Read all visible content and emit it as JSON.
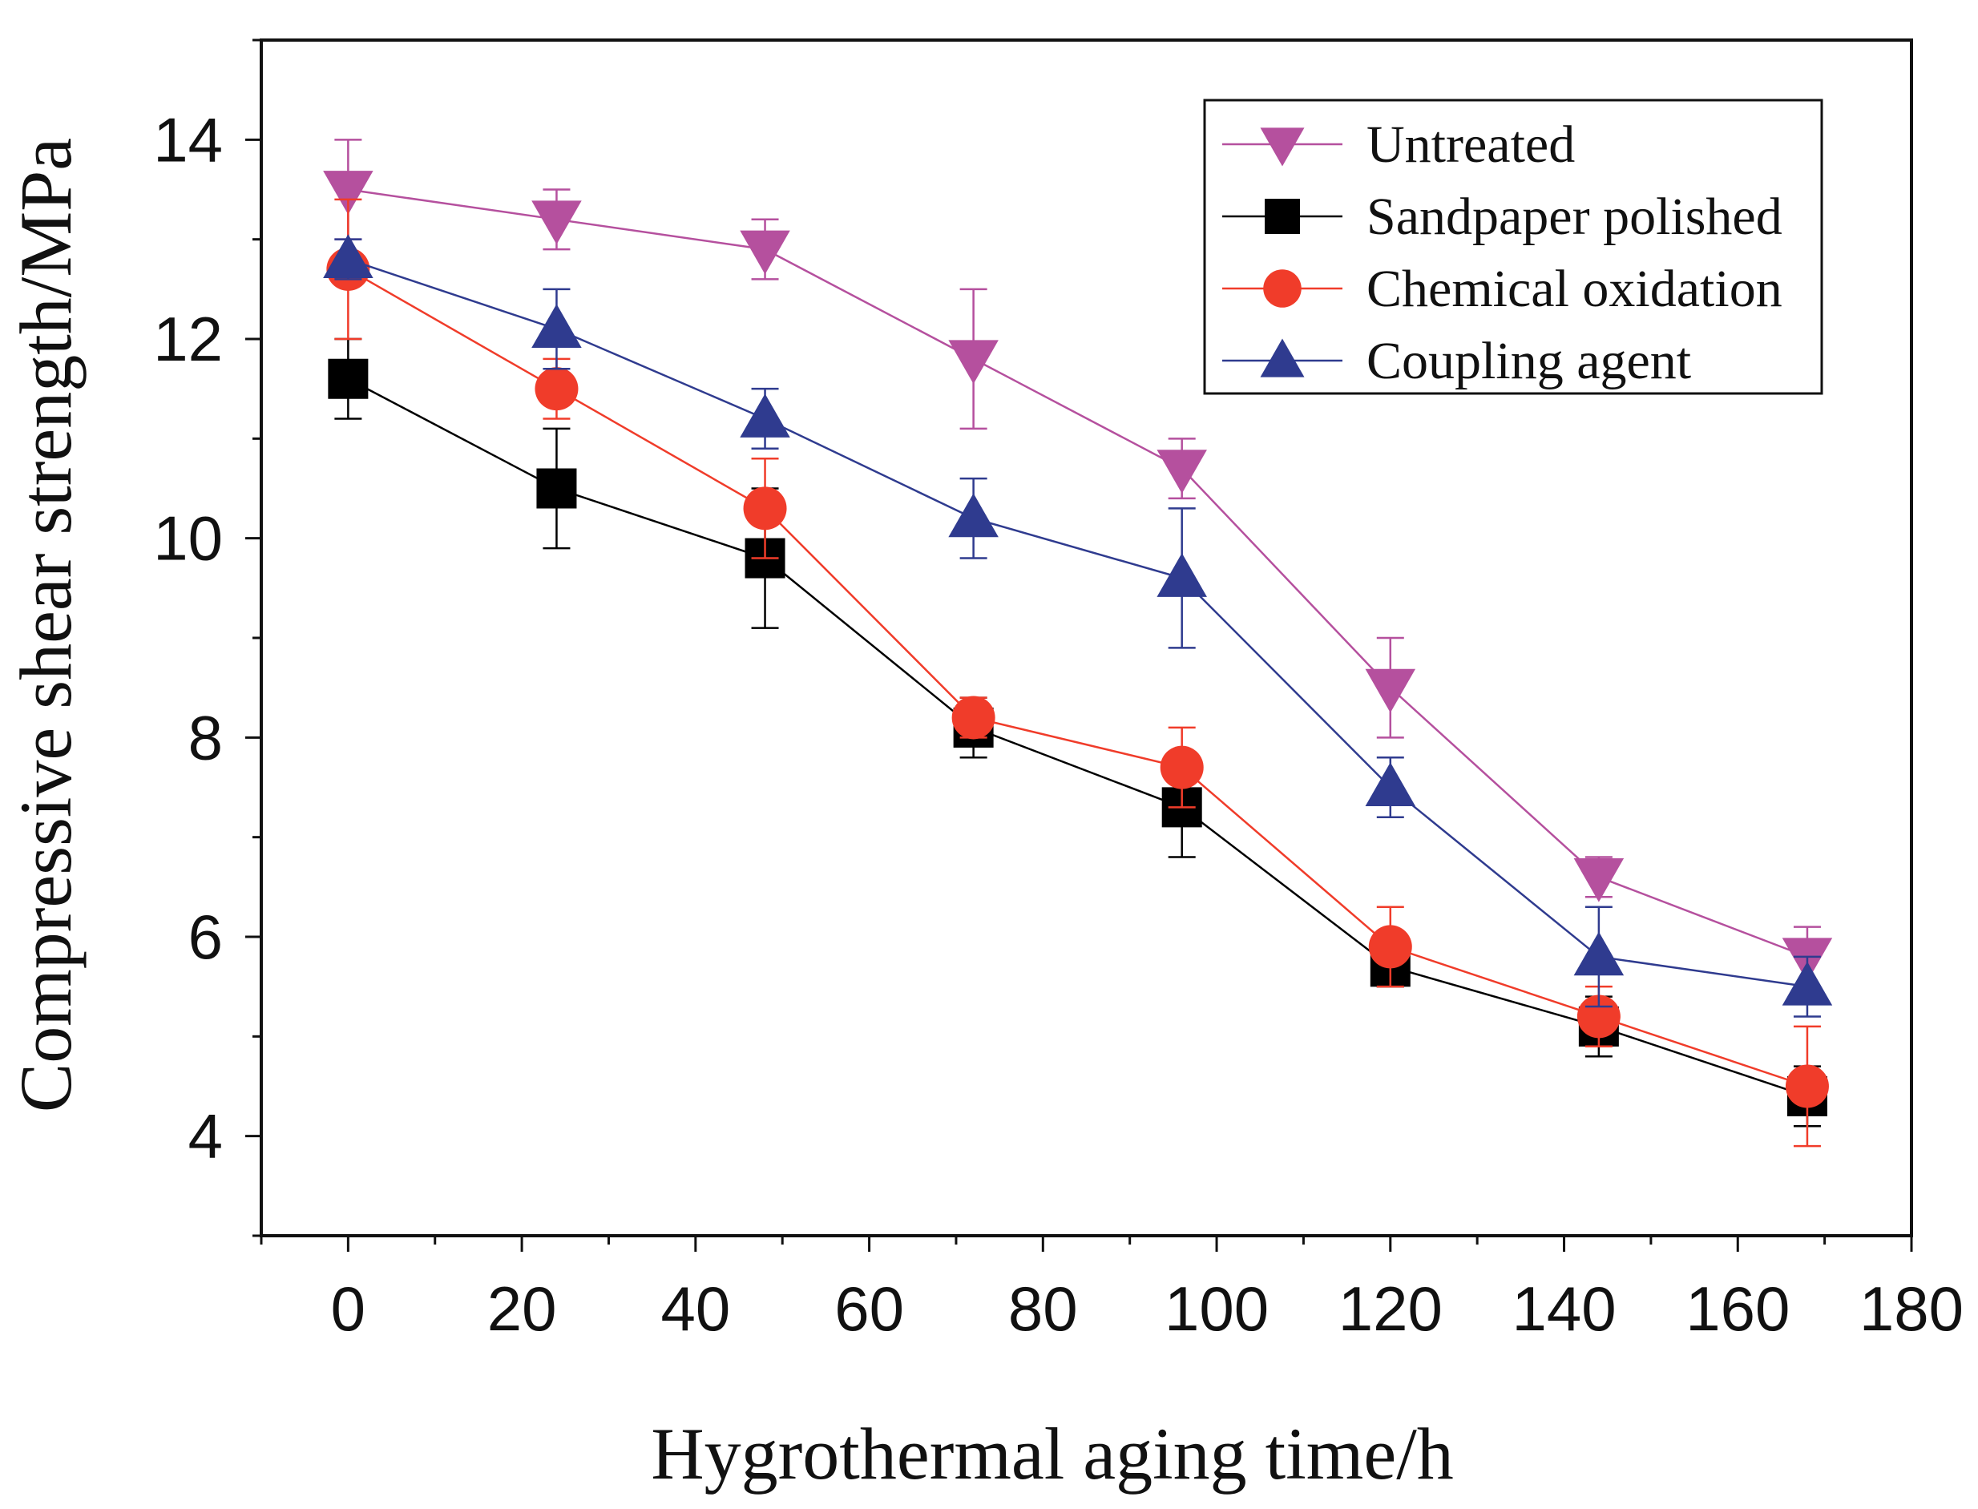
{
  "chart_data": {
    "type": "line",
    "title": "",
    "xlabel": "Hygrothermal aging time/h",
    "ylabel": "Compressive shear strength/MPa",
    "xlim": [
      -10,
      180
    ],
    "ylim": [
      3,
      15
    ],
    "xticks": [
      0,
      20,
      40,
      60,
      80,
      100,
      120,
      140,
      160,
      180
    ],
    "yticks": [
      4,
      6,
      8,
      10,
      12,
      14
    ],
    "x_minor_step": 10,
    "y_minor_step": 1,
    "grid": false,
    "legend_position": "top-right",
    "x": [
      0,
      24,
      48,
      72,
      96,
      120,
      144,
      168
    ],
    "series": [
      {
        "name": "Untreated",
        "marker": "triangle-down",
        "color": "#b5509e",
        "values": [
          13.5,
          13.2,
          12.9,
          11.8,
          10.7,
          8.5,
          6.6,
          5.8
        ],
        "errors": [
          0.5,
          0.3,
          0.3,
          0.7,
          0.3,
          0.5,
          0.2,
          0.3
        ]
      },
      {
        "name": "Sandpaper polished",
        "marker": "square",
        "color": "#000000",
        "values": [
          11.6,
          10.5,
          9.8,
          8.1,
          7.3,
          5.7,
          5.1,
          4.4
        ],
        "errors": [
          0.4,
          0.6,
          0.7,
          0.3,
          0.5,
          0.2,
          0.3,
          0.3
        ]
      },
      {
        "name": "Chemical oxidation",
        "marker": "circle",
        "color": "#f03c2a",
        "values": [
          12.7,
          11.5,
          10.3,
          8.2,
          7.7,
          5.9,
          5.2,
          4.5
        ],
        "errors": [
          0.7,
          0.3,
          0.5,
          0.2,
          0.4,
          0.4,
          0.3,
          0.6
        ]
      },
      {
        "name": "Coupling agent",
        "marker": "triangle-up",
        "color": "#2f3b8f",
        "values": [
          12.8,
          12.1,
          11.2,
          10.2,
          9.6,
          7.5,
          5.8,
          5.5
        ],
        "errors": [
          0.2,
          0.4,
          0.3,
          0.4,
          0.7,
          0.3,
          0.5,
          0.3
        ]
      }
    ]
  }
}
